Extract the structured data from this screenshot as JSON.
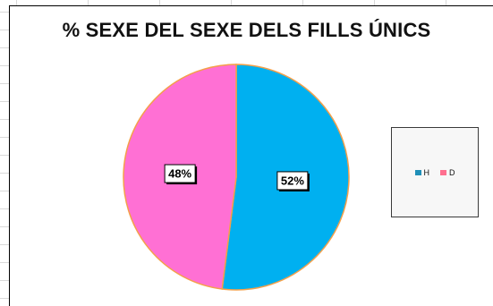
{
  "chart_data": {
    "type": "pie",
    "title": "% SEXE DEL SEXE DELS FILLS ÚNICS",
    "categories": [
      "H",
      "D"
    ],
    "values": [
      52,
      48
    ],
    "data_labels": [
      "52%",
      "48%"
    ],
    "colors": [
      "#00b0f0",
      "#ff70d4"
    ],
    "legend_colors": [
      "#1f8fb8",
      "#ff6f8f"
    ],
    "slice_border_color": "#f4a04a",
    "legend_position": "right"
  }
}
